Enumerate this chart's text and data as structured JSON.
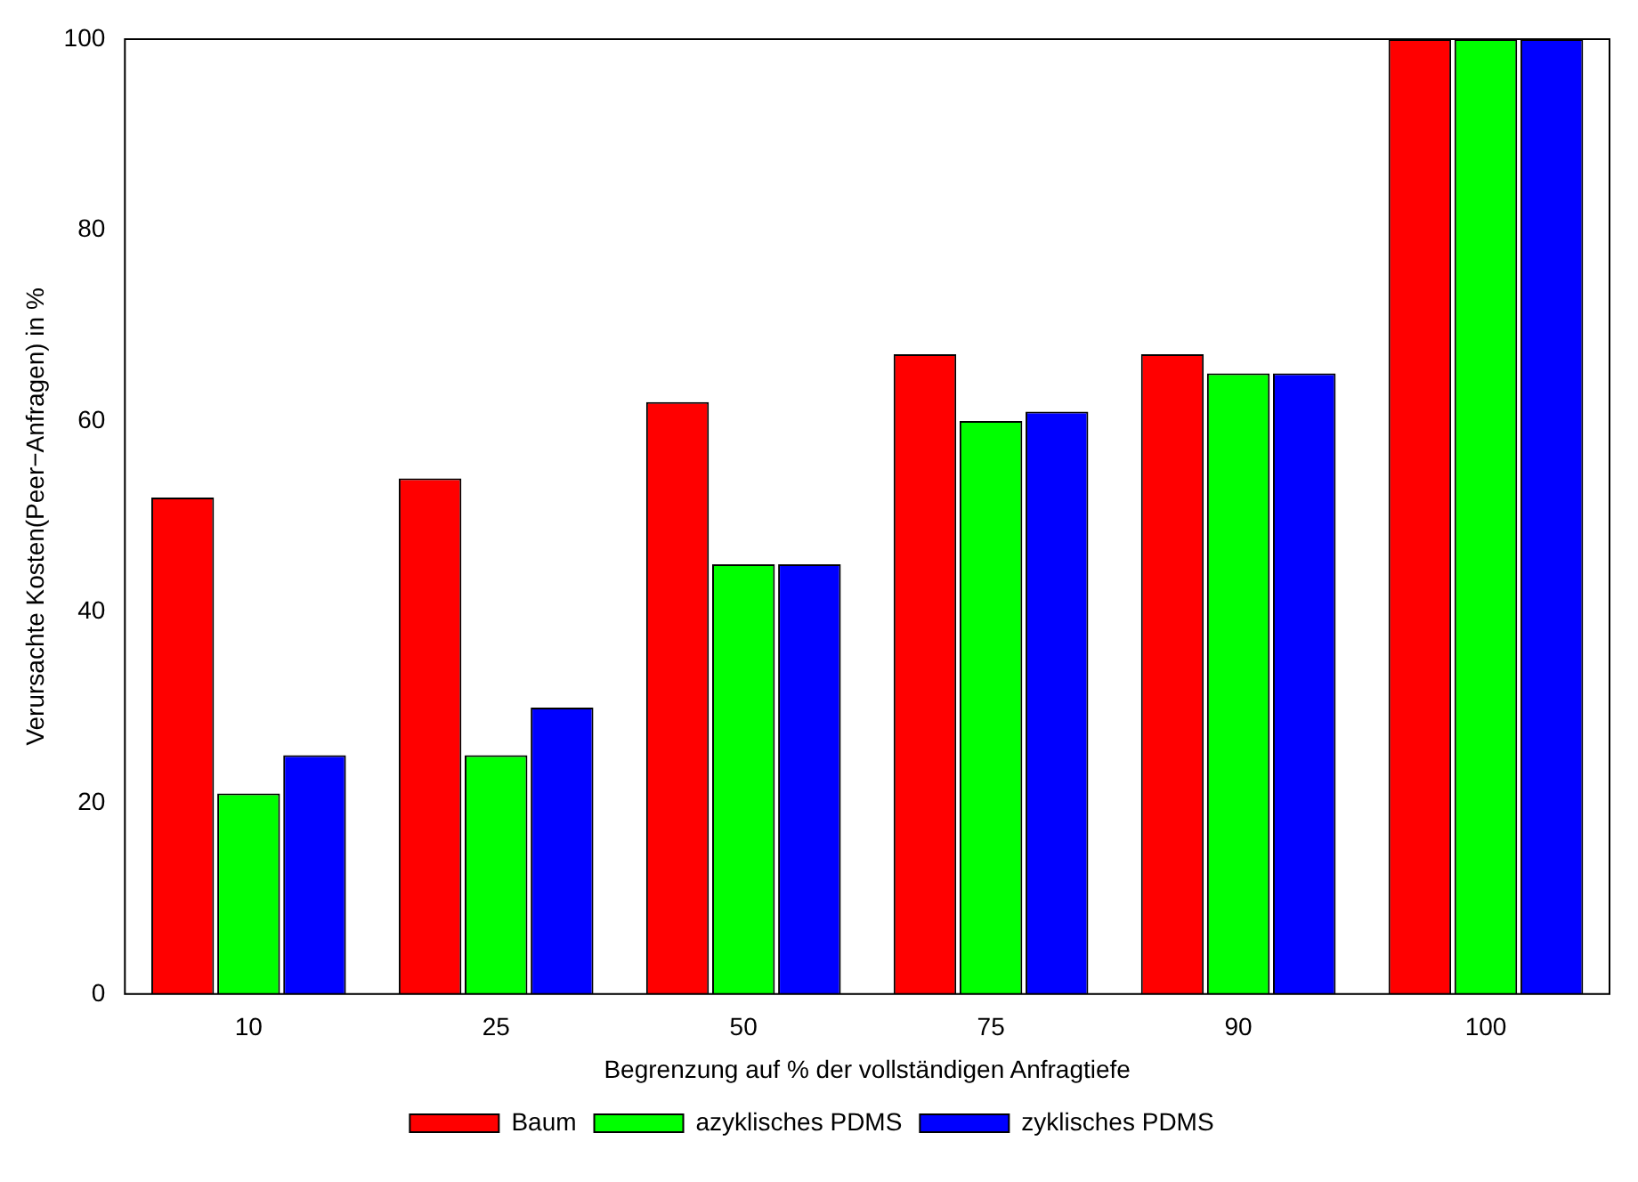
{
  "chart_data": {
    "type": "bar",
    "xlabel": "Begrenzung auf % der vollständigen Anfragtiefe",
    "ylabel": "Verursachte Kosten(Peer−Anfragen) in %",
    "categories": [
      "10",
      "25",
      "50",
      "75",
      "90",
      "100"
    ],
    "series": [
      {
        "name": "Baum",
        "color": "#ff0000",
        "values": [
          52,
          54,
          62,
          67,
          67,
          100
        ]
      },
      {
        "name": "azyklisches PDMS",
        "color": "#00ff00",
        "values": [
          21,
          25,
          45,
          60,
          65,
          100
        ]
      },
      {
        "name": "zyklisches PDMS",
        "color": "#0000ff",
        "values": [
          25,
          30,
          45,
          61,
          65,
          100
        ]
      }
    ],
    "ylim": [
      0,
      100
    ],
    "yticks": [
      0,
      20,
      40,
      60,
      80,
      100
    ],
    "grid": false,
    "legend": "bottom"
  }
}
